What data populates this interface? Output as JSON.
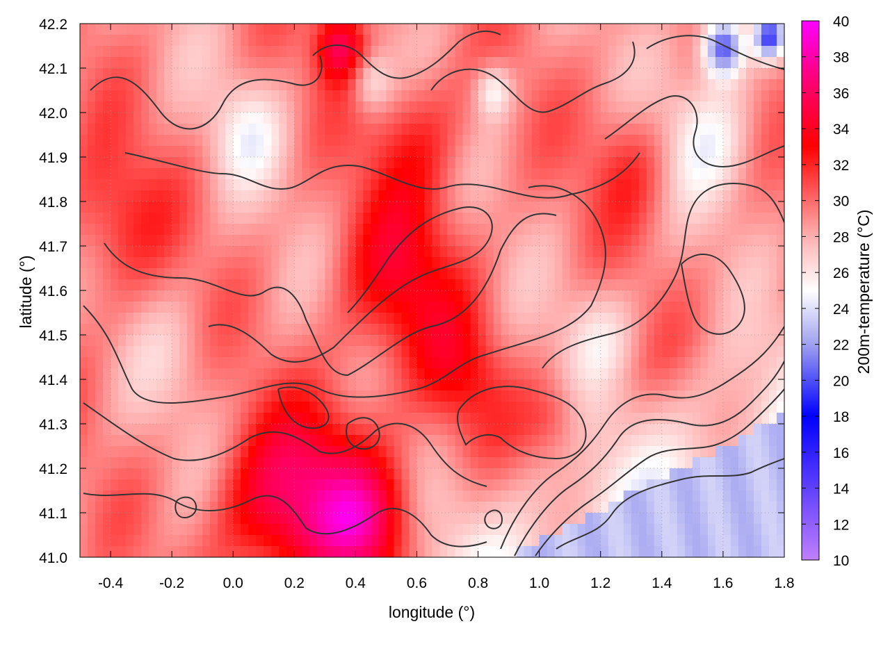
{
  "chart_data": {
    "type": "heatmap",
    "title": "",
    "xlabel": "longitude (°)",
    "ylabel": "latitude (°)",
    "colorbar_label": "200m-temperature (°C)",
    "xlim": [
      -0.5,
      1.8
    ],
    "ylim": [
      41.0,
      42.2
    ],
    "clim": [
      10,
      40
    ],
    "x_ticks": [
      "-0.4",
      "-0.2",
      "0.0",
      "0.2",
      "0.4",
      "0.6",
      "0.8",
      "1.0",
      "1.2",
      "1.4",
      "1.6",
      "1.8"
    ],
    "x_tick_values": [
      -0.4,
      -0.2,
      0.0,
      0.2,
      0.4,
      0.6,
      0.8,
      1.0,
      1.2,
      1.4,
      1.6,
      1.8
    ],
    "y_ticks": [
      "41.0",
      "41.1",
      "41.2",
      "41.3",
      "41.4",
      "41.5",
      "41.6",
      "41.7",
      "41.8",
      "41.9",
      "42.0",
      "42.1",
      "42.2"
    ],
    "y_tick_values": [
      41.0,
      41.1,
      41.2,
      41.3,
      41.4,
      41.5,
      41.6,
      41.7,
      41.8,
      41.9,
      42.0,
      42.1,
      42.2
    ],
    "colorbar_ticks": [
      "10",
      "12",
      "14",
      "16",
      "18",
      "20",
      "22",
      "24",
      "26",
      "28",
      "30",
      "32",
      "34",
      "36",
      "38",
      "40"
    ],
    "colorbar_tick_values": [
      10,
      12,
      14,
      16,
      18,
      20,
      22,
      24,
      26,
      28,
      30,
      32,
      34,
      36,
      38,
      40
    ],
    "colormap": [
      {
        "v": 10,
        "color": "#c080ff"
      },
      {
        "v": 18,
        "color": "#0000ff"
      },
      {
        "v": 22,
        "color": "#a0a0f0"
      },
      {
        "v": 25,
        "color": "#ffffff"
      },
      {
        "v": 28,
        "color": "#ffb0b0"
      },
      {
        "v": 33,
        "color": "#ff0000"
      },
      {
        "v": 37,
        "color": "#ff0080"
      },
      {
        "v": 40,
        "color": "#ff00ff"
      }
    ],
    "grid": true,
    "contours": true,
    "sea_temperature": 23,
    "hot_spots": [
      {
        "lon": 0.55,
        "lat": 41.62,
        "t": 33.5,
        "r": 0.2
      },
      {
        "lon": 0.3,
        "lat": 41.15,
        "t": 34.5,
        "r": 0.2
      },
      {
        "lon": 0.1,
        "lat": 41.1,
        "t": 33.0,
        "r": 0.18
      },
      {
        "lon": -0.4,
        "lat": 41.75,
        "t": 32.0,
        "r": 0.18
      },
      {
        "lon": 0.6,
        "lat": 41.95,
        "t": 32.0,
        "r": 0.16
      },
      {
        "lon": 0.75,
        "lat": 41.4,
        "t": 32.0,
        "r": 0.14
      },
      {
        "lon": 0.45,
        "lat": 41.05,
        "t": 34.5,
        "r": 0.15
      },
      {
        "lon": 1.3,
        "lat": 41.88,
        "t": 31.5,
        "r": 0.14
      },
      {
        "lon": 1.05,
        "lat": 41.3,
        "t": 31.0,
        "r": 0.1
      },
      {
        "lon": 0.35,
        "lat": 42.15,
        "t": 35.5,
        "r": 0.08
      }
    ],
    "cool_spots": [
      {
        "lon": 1.6,
        "lat": 42.15,
        "t": 19.0,
        "r": 0.07
      },
      {
        "lon": 1.75,
        "lat": 42.17,
        "t": 20.0,
        "r": 0.05
      },
      {
        "lon": 0.05,
        "lat": 41.95,
        "t": 26.0,
        "r": 0.12
      },
      {
        "lon": 0.45,
        "lat": 42.07,
        "t": 25.5,
        "r": 0.07
      },
      {
        "lon": 0.85,
        "lat": 42.05,
        "t": 25.0,
        "r": 0.06
      },
      {
        "lon": -0.2,
        "lat": 41.45,
        "t": 28.0,
        "r": 0.15
      },
      {
        "lon": 1.55,
        "lat": 41.95,
        "t": 25.5,
        "r": 0.15
      },
      {
        "lon": 1.2,
        "lat": 41.5,
        "t": 26.5,
        "r": 0.12
      }
    ]
  }
}
